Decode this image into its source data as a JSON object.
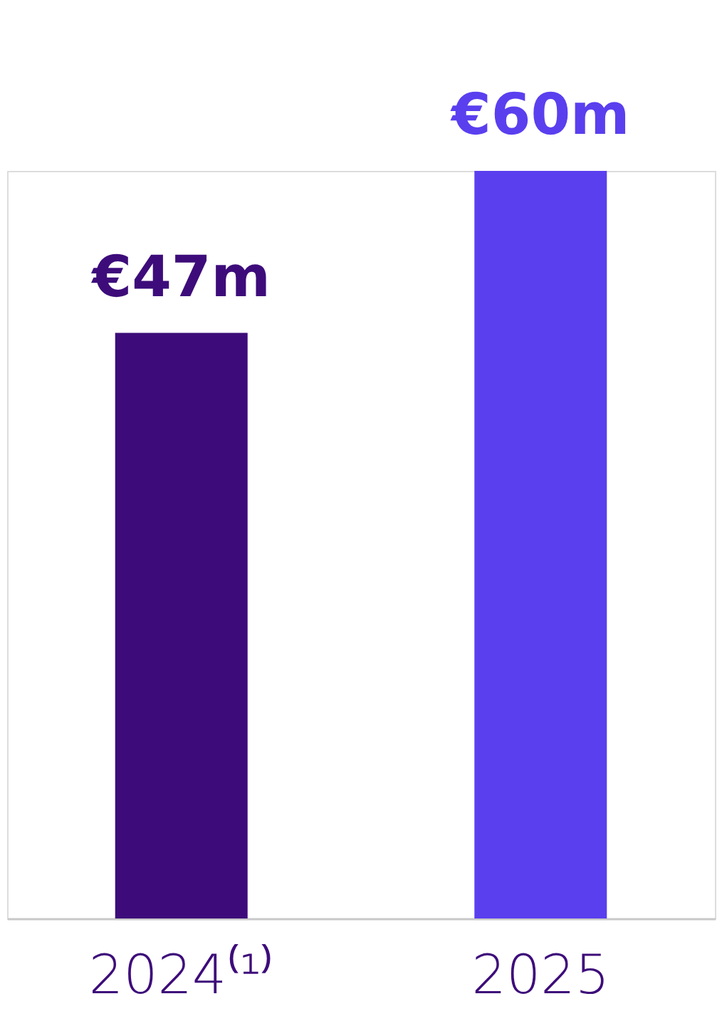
{
  "chart_data": {
    "type": "bar",
    "relative": false,
    "categories": [
      "2024⁽¹⁾",
      "2025"
    ],
    "values": [
      47,
      60
    ],
    "colors": [
      "#3d0c7a",
      "#5a3fef"
    ],
    "value_labels": [
      "€47m",
      "€60m"
    ]
  }
}
